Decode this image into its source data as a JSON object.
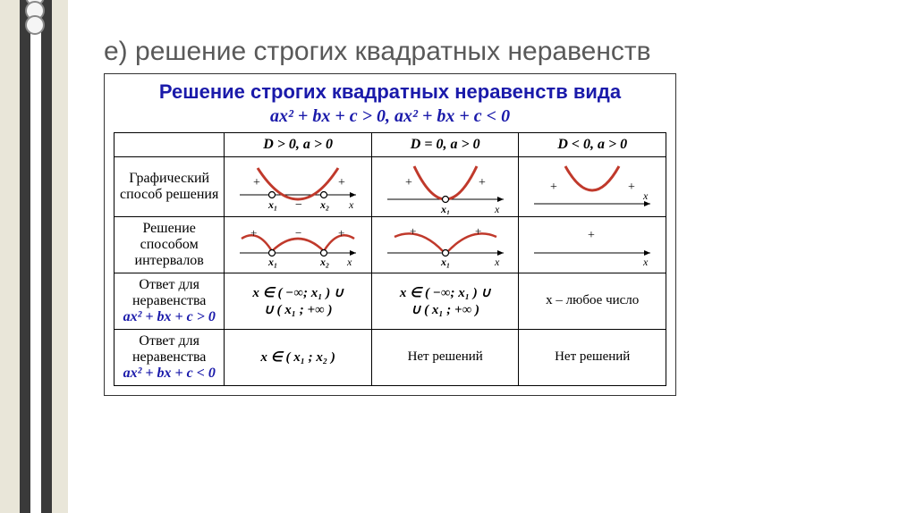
{
  "slide": {
    "title": "е) решение строгих квадратных неравенств"
  },
  "chart": {
    "title": "Решение строгих квадратных неравенств вида",
    "subtitle": "ax² + bx + c > 0, ax² + bx + c < 0",
    "headers": [
      "D > 0, a > 0",
      "D = 0, a > 0",
      "D < 0, a > 0"
    ],
    "rows": {
      "r1_label": "Графический способ решения",
      "r2_label": "Решение способом интервалов",
      "r3_label_line1": "Ответ для неравенства",
      "r3_label_math": "ax² + bx + c > 0",
      "r4_label_line1": "Ответ для неравенства",
      "r4_label_math": "ax² + bx + c < 0"
    },
    "answers": {
      "r3c1": "x ∈ ( −∞; x₁ ) ∪\n∪ ( x₁ ; +∞ )",
      "r3c2": "x ∈ ( −∞; x₁ ) ∪\n∪ ( x₁ ; +∞ )",
      "r3c3": "x – любое число",
      "r4c1": "x ∈ ( x₁ ; x₂ )",
      "r4c2": "Нет решений",
      "r4c3": "Нет решений"
    },
    "colors": {
      "curve": "#c0392b",
      "axis": "#000000",
      "label": "#000000",
      "title": "#1a1aaa"
    }
  }
}
